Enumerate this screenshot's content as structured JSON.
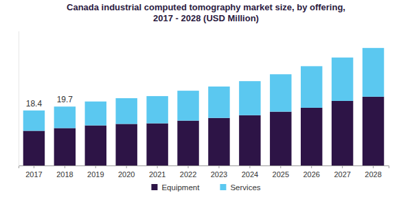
{
  "chart_data": {
    "type": "bar",
    "title": "Canada industrial computed tomography market size, by offering,\n2017 - 2028 (USD Million)",
    "categories": [
      "2017",
      "2018",
      "2019",
      "2020",
      "2021",
      "2022",
      "2023",
      "2024",
      "2025",
      "2026",
      "2027",
      "2028"
    ],
    "series": [
      {
        "name": "Equipment",
        "color": "#2d1446",
        "values": [
          11.6,
          12.5,
          13.4,
          13.9,
          14.1,
          15.0,
          15.9,
          16.8,
          18.0,
          19.3,
          21.6,
          23.0
        ]
      },
      {
        "name": "Services",
        "color": "#5bc8f0",
        "values": [
          6.8,
          7.2,
          8.0,
          8.6,
          9.1,
          10.0,
          10.5,
          11.4,
          12.5,
          13.9,
          14.5,
          16.3
        ]
      }
    ],
    "annotations": [
      {
        "category": "2017",
        "text": "18.4"
      },
      {
        "category": "2018",
        "text": "19.7"
      }
    ],
    "stacked": true,
    "ylim": [
      0,
      45
    ],
    "yticks": [],
    "grid": false,
    "tick_labels": "x",
    "legend": "bottom"
  }
}
